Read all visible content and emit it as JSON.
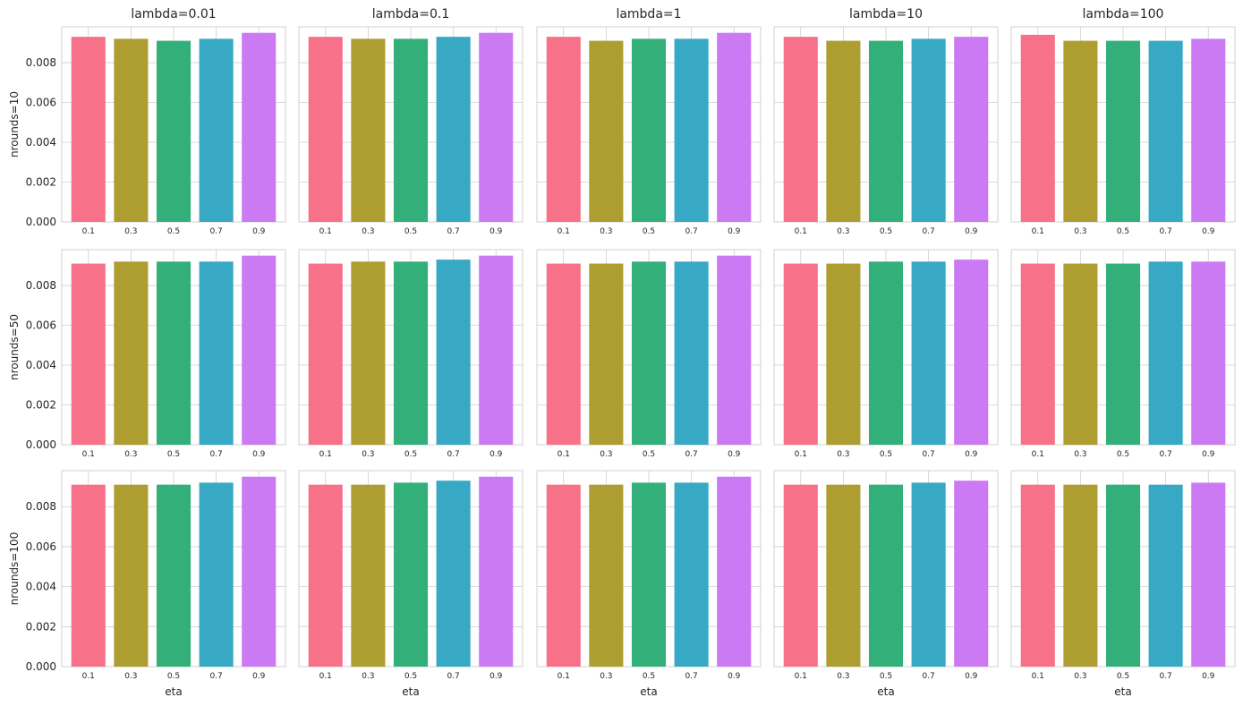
{
  "chart_data": {
    "type": "bar",
    "layout": "grid-3x5",
    "column_titles": [
      "lambda=0.01",
      "lambda=0.1",
      "lambda=1",
      "lambda=10",
      "lambda=100"
    ],
    "row_labels": [
      "nrounds=10",
      "nrounds=50",
      "nrounds=100"
    ],
    "categories": [
      "0.1",
      "0.3",
      "0.5",
      "0.7",
      "0.9"
    ],
    "xlabel": "eta",
    "ylim": [
      0,
      0.0098
    ],
    "yticks": [
      "0.000",
      "0.002",
      "0.004",
      "0.006",
      "0.008"
    ],
    "ytick_values": [
      0,
      0.002,
      0.004,
      0.006,
      0.008
    ],
    "bar_colors": [
      "#f77189",
      "#ae9d31",
      "#33b07a",
      "#38a9c5",
      "#cc7af4"
    ],
    "grid": true,
    "panels": [
      [
        [
          0.0093,
          0.0092,
          0.0091,
          0.0092,
          0.0095
        ],
        [
          0.0093,
          0.0092,
          0.0092,
          0.0093,
          0.0095
        ],
        [
          0.0093,
          0.0091,
          0.0092,
          0.0092,
          0.0095
        ],
        [
          0.0093,
          0.0091,
          0.0091,
          0.0092,
          0.0093
        ],
        [
          0.0094,
          0.0091,
          0.0091,
          0.0091,
          0.0092
        ]
      ],
      [
        [
          0.0091,
          0.0092,
          0.0092,
          0.0092,
          0.0095
        ],
        [
          0.0091,
          0.0092,
          0.0092,
          0.0093,
          0.0095
        ],
        [
          0.0091,
          0.0091,
          0.0092,
          0.0092,
          0.0095
        ],
        [
          0.0091,
          0.0091,
          0.0092,
          0.0092,
          0.0093
        ],
        [
          0.0091,
          0.0091,
          0.0091,
          0.0092,
          0.0092
        ]
      ],
      [
        [
          0.0091,
          0.0091,
          0.0091,
          0.0092,
          0.0095
        ],
        [
          0.0091,
          0.0091,
          0.0092,
          0.0093,
          0.0095
        ],
        [
          0.0091,
          0.0091,
          0.0092,
          0.0092,
          0.0095
        ],
        [
          0.0091,
          0.0091,
          0.0091,
          0.0092,
          0.0093
        ],
        [
          0.0091,
          0.0091,
          0.0091,
          0.0091,
          0.0092
        ]
      ]
    ]
  }
}
